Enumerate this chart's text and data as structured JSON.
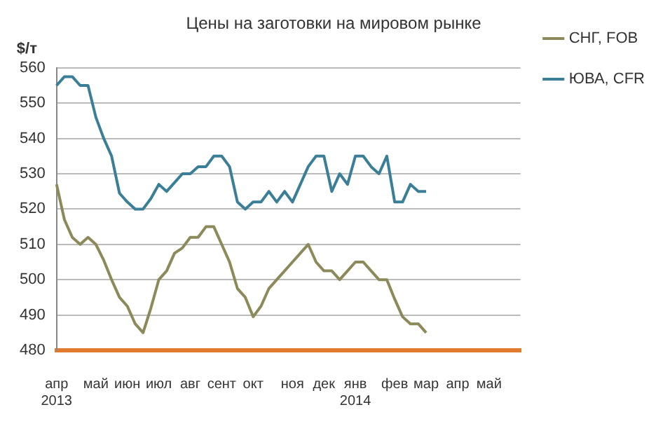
{
  "chart_data": {
    "type": "line",
    "title": "Цены на заготовки на мировом рынке",
    "ylabel": "$/т",
    "categories": [
      "апр\n2013",
      null,
      null,
      null,
      null,
      "май",
      null,
      null,
      null,
      "июн",
      null,
      null,
      null,
      "июл",
      null,
      null,
      null,
      "авг",
      null,
      null,
      null,
      "сент",
      null,
      null,
      null,
      "окт",
      null,
      null,
      null,
      null,
      "ноя",
      null,
      null,
      null,
      "дек",
      null,
      null,
      null,
      "янв\n2014",
      null,
      null,
      null,
      null,
      "фев",
      null,
      null,
      null,
      "мар",
      null,
      null,
      null,
      "апр",
      null,
      null,
      null,
      "май",
      null,
      null,
      null,
      null
    ],
    "series": [
      {
        "name": "СНГ, FOB",
        "color": "#8c8a5a",
        "values": [
          527,
          517,
          512,
          510,
          512,
          510,
          505.5,
          500,
          495,
          492.5,
          487.5,
          485,
          492,
          500,
          502.5,
          507.5,
          509,
          512,
          512,
          515,
          515,
          510,
          505,
          497.5,
          495,
          489.5,
          492.5,
          497.5,
          500,
          502.5,
          505,
          507.5,
          510,
          505,
          502.5,
          502.5,
          500,
          502.5,
          505,
          505,
          502.5,
          500,
          500,
          494.5,
          489.5,
          487.5,
          487.5,
          485,
          null,
          null,
          null,
          null,
          null,
          null,
          null,
          null,
          null,
          null,
          null,
          null
        ]
      },
      {
        "name": "ЮВА, CFR",
        "color": "#3a7f97",
        "values": [
          555,
          557.5,
          557.5,
          555,
          555,
          546,
          540,
          535,
          524.5,
          522,
          520,
          520,
          523,
          527,
          525,
          527.5,
          530,
          530,
          532,
          532,
          535,
          535,
          532,
          522,
          520,
          522,
          522,
          525,
          522,
          525,
          522,
          527,
          532,
          535,
          535,
          525,
          530,
          527,
          535,
          535,
          532,
          530,
          535,
          522,
          522,
          527,
          525,
          525,
          null,
          null,
          null,
          null,
          null,
          null,
          null,
          null,
          null,
          null,
          null,
          null
        ]
      }
    ],
    "ylim": [
      480,
      560
    ],
    "yticks": [
      480,
      490,
      500,
      510,
      520,
      530,
      540,
      550,
      560
    ],
    "grid": "y",
    "legend": "right",
    "marker": "none",
    "line_style": "solid"
  }
}
